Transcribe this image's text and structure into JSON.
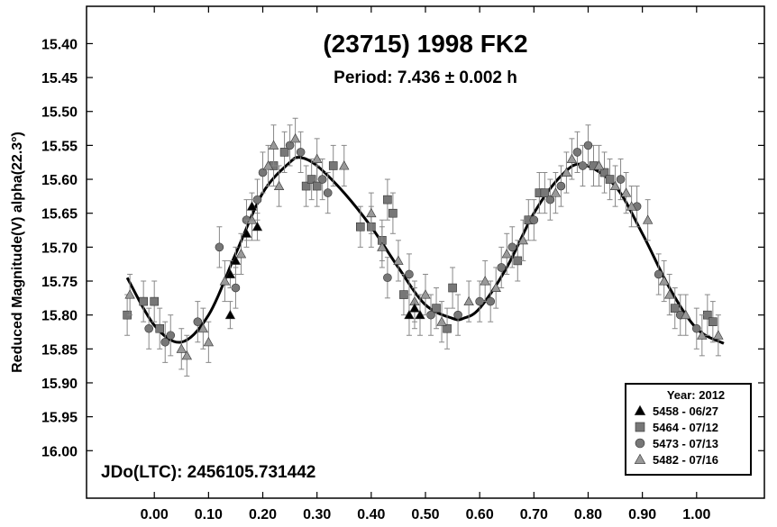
{
  "chart_data": {
    "type": "scatter",
    "title": "(23715) 1998 FK2",
    "subtitle": "Period: 7.436 ± 0.002 h",
    "xlabel": "",
    "ylabel": "Reduced Magnitude(V) alpha(22.3°)",
    "annotation": "JDo(LTC): 2456105.731442",
    "xlim": [
      -0.125,
      1.125
    ],
    "ylim": [
      16.07,
      15.345
    ],
    "y_inverted": true,
    "x_ticks": [
      "0.00",
      "0.10",
      "0.20",
      "0.30",
      "0.40",
      "0.50",
      "0.60",
      "0.70",
      "0.80",
      "0.90",
      "1.00"
    ],
    "y_ticks": [
      "15.40",
      "15.45",
      "15.50",
      "15.55",
      "15.60",
      "15.65",
      "15.70",
      "15.75",
      "15.80",
      "15.85",
      "15.90",
      "15.95",
      "16.00"
    ],
    "legend": {
      "title": "Year: 2012",
      "placement": "bottom-right",
      "entries": [
        "5458 - 06/27",
        "5464 - 07/12",
        "5473 - 07/13",
        "5482 - 07/16"
      ]
    },
    "fit_curve": {
      "name": "Fourier fit",
      "x": [
        -0.05,
        0.0,
        0.05,
        0.1,
        0.15,
        0.2,
        0.25,
        0.27,
        0.3,
        0.35,
        0.4,
        0.45,
        0.5,
        0.55,
        0.57,
        0.6,
        0.65,
        0.7,
        0.75,
        0.79,
        0.85,
        0.9,
        0.95,
        1.0,
        1.05
      ],
      "y": [
        15.745,
        15.815,
        15.84,
        15.8,
        15.71,
        15.62,
        15.575,
        15.568,
        15.58,
        15.62,
        15.67,
        15.73,
        15.785,
        15.805,
        15.805,
        15.79,
        15.73,
        15.65,
        15.595,
        15.578,
        15.61,
        15.68,
        15.76,
        15.82,
        15.842
      ],
      "color": "#000000"
    },
    "series": [
      {
        "name": "5458 - 06/27",
        "marker": "triangle",
        "color": "#000000",
        "points": [
          {
            "x": 0.14,
            "y": 15.74,
            "err": 0.02
          },
          {
            "x": 0.15,
            "y": 15.72,
            "err": 0.02
          },
          {
            "x": 0.14,
            "y": 15.8,
            "err": 0.02
          },
          {
            "x": 0.17,
            "y": 15.68,
            "err": 0.02
          },
          {
            "x": 0.18,
            "y": 15.64,
            "err": 0.02
          },
          {
            "x": 0.19,
            "y": 15.67,
            "err": 0.02
          },
          {
            "x": 0.47,
            "y": 15.8,
            "err": 0.03
          },
          {
            "x": 0.48,
            "y": 15.79,
            "err": 0.03
          },
          {
            "x": 0.49,
            "y": 15.8,
            "err": 0.03
          }
        ]
      },
      {
        "name": "5464 - 07/12",
        "marker": "square",
        "color": "#777777",
        "points": [
          {
            "x": -0.05,
            "y": 15.8,
            "err": 0.03
          },
          {
            "x": -0.02,
            "y": 15.78,
            "err": 0.03
          },
          {
            "x": 0.0,
            "y": 15.78,
            "err": 0.03
          },
          {
            "x": 0.01,
            "y": 15.82,
            "err": 0.03
          },
          {
            "x": 0.22,
            "y": 15.58,
            "err": 0.03
          },
          {
            "x": 0.24,
            "y": 15.56,
            "err": 0.03
          },
          {
            "x": 0.28,
            "y": 15.61,
            "err": 0.03
          },
          {
            "x": 0.29,
            "y": 15.6,
            "err": 0.03
          },
          {
            "x": 0.3,
            "y": 15.61,
            "err": 0.03
          },
          {
            "x": 0.33,
            "y": 15.58,
            "err": 0.03
          },
          {
            "x": 0.38,
            "y": 15.67,
            "err": 0.03
          },
          {
            "x": 0.4,
            "y": 15.67,
            "err": 0.03
          },
          {
            "x": 0.42,
            "y": 15.69,
            "err": 0.03
          },
          {
            "x": 0.43,
            "y": 15.63,
            "err": 0.03
          },
          {
            "x": 0.44,
            "y": 15.65,
            "err": 0.03
          },
          {
            "x": 0.46,
            "y": 15.77,
            "err": 0.03
          },
          {
            "x": 0.52,
            "y": 15.79,
            "err": 0.03
          },
          {
            "x": 0.54,
            "y": 15.82,
            "err": 0.03
          },
          {
            "x": 0.55,
            "y": 15.76,
            "err": 0.03
          },
          {
            "x": 0.67,
            "y": 15.72,
            "err": 0.03
          },
          {
            "x": 0.69,
            "y": 15.66,
            "err": 0.03
          },
          {
            "x": 0.71,
            "y": 15.62,
            "err": 0.03
          },
          {
            "x": 0.72,
            "y": 15.62,
            "err": 0.03
          },
          {
            "x": 0.81,
            "y": 15.58,
            "err": 0.03
          },
          {
            "x": 0.83,
            "y": 15.59,
            "err": 0.03
          },
          {
            "x": 0.84,
            "y": 15.6,
            "err": 0.03
          },
          {
            "x": 0.96,
            "y": 15.79,
            "err": 0.03
          },
          {
            "x": 1.02,
            "y": 15.8,
            "err": 0.03
          },
          {
            "x": 1.03,
            "y": 15.81,
            "err": 0.03
          }
        ]
      },
      {
        "name": "5473 - 07/13",
        "marker": "circle",
        "color": "#777777",
        "points": [
          {
            "x": -0.01,
            "y": 15.82,
            "err": 0.03
          },
          {
            "x": 0.02,
            "y": 15.84,
            "err": 0.03
          },
          {
            "x": 0.03,
            "y": 15.83,
            "err": 0.03
          },
          {
            "x": 0.08,
            "y": 15.81,
            "err": 0.03
          },
          {
            "x": 0.12,
            "y": 15.7,
            "err": 0.03
          },
          {
            "x": 0.15,
            "y": 15.76,
            "err": 0.03
          },
          {
            "x": 0.17,
            "y": 15.66,
            "err": 0.03
          },
          {
            "x": 0.19,
            "y": 15.63,
            "err": 0.03
          },
          {
            "x": 0.2,
            "y": 15.59,
            "err": 0.03
          },
          {
            "x": 0.25,
            "y": 15.55,
            "err": 0.03
          },
          {
            "x": 0.27,
            "y": 15.56,
            "err": 0.03
          },
          {
            "x": 0.31,
            "y": 15.6,
            "err": 0.03
          },
          {
            "x": 0.32,
            "y": 15.62,
            "err": 0.03
          },
          {
            "x": 0.43,
            "y": 15.745,
            "err": 0.03
          },
          {
            "x": 0.47,
            "y": 15.74,
            "err": 0.03
          },
          {
            "x": 0.51,
            "y": 15.8,
            "err": 0.03
          },
          {
            "x": 0.56,
            "y": 15.8,
            "err": 0.03
          },
          {
            "x": 0.6,
            "y": 15.78,
            "err": 0.03
          },
          {
            "x": 0.62,
            "y": 15.78,
            "err": 0.03
          },
          {
            "x": 0.64,
            "y": 15.73,
            "err": 0.03
          },
          {
            "x": 0.66,
            "y": 15.7,
            "err": 0.03
          },
          {
            "x": 0.7,
            "y": 15.66,
            "err": 0.03
          },
          {
            "x": 0.73,
            "y": 15.63,
            "err": 0.03
          },
          {
            "x": 0.75,
            "y": 15.61,
            "err": 0.03
          },
          {
            "x": 0.78,
            "y": 15.56,
            "err": 0.03
          },
          {
            "x": 0.79,
            "y": 15.58,
            "err": 0.03
          },
          {
            "x": 0.8,
            "y": 15.55,
            "err": 0.03
          },
          {
            "x": 0.86,
            "y": 15.6,
            "err": 0.03
          },
          {
            "x": 0.89,
            "y": 15.64,
            "err": 0.03
          },
          {
            "x": 0.93,
            "y": 15.74,
            "err": 0.03
          },
          {
            "x": 0.97,
            "y": 15.8,
            "err": 0.03
          },
          {
            "x": 1.0,
            "y": 15.82,
            "err": 0.03
          }
        ]
      },
      {
        "name": "5482 - 07/16",
        "marker": "triangle",
        "color": "#999999",
        "points": [
          {
            "x": -0.045,
            "y": 15.77,
            "err": 0.03
          },
          {
            "x": 0.05,
            "y": 15.85,
            "err": 0.03
          },
          {
            "x": 0.06,
            "y": 15.86,
            "err": 0.03
          },
          {
            "x": 0.09,
            "y": 15.82,
            "err": 0.03
          },
          {
            "x": 0.1,
            "y": 15.84,
            "err": 0.03
          },
          {
            "x": 0.13,
            "y": 15.75,
            "err": 0.03
          },
          {
            "x": 0.16,
            "y": 15.71,
            "err": 0.03
          },
          {
            "x": 0.18,
            "y": 15.66,
            "err": 0.03
          },
          {
            "x": 0.21,
            "y": 15.58,
            "err": 0.03
          },
          {
            "x": 0.22,
            "y": 15.55,
            "err": 0.03
          },
          {
            "x": 0.23,
            "y": 15.61,
            "err": 0.03
          },
          {
            "x": 0.26,
            "y": 15.54,
            "err": 0.03
          },
          {
            "x": 0.3,
            "y": 15.57,
            "err": 0.03
          },
          {
            "x": 0.35,
            "y": 15.58,
            "err": 0.03
          },
          {
            "x": 0.4,
            "y": 15.65,
            "err": 0.03
          },
          {
            "x": 0.42,
            "y": 15.7,
            "err": 0.03
          },
          {
            "x": 0.45,
            "y": 15.72,
            "err": 0.03
          },
          {
            "x": 0.48,
            "y": 15.78,
            "err": 0.03
          },
          {
            "x": 0.5,
            "y": 15.77,
            "err": 0.03
          },
          {
            "x": 0.53,
            "y": 15.81,
            "err": 0.03
          },
          {
            "x": 0.58,
            "y": 15.78,
            "err": 0.03
          },
          {
            "x": 0.61,
            "y": 15.75,
            "err": 0.03
          },
          {
            "x": 0.63,
            "y": 15.76,
            "err": 0.03
          },
          {
            "x": 0.65,
            "y": 15.71,
            "err": 0.03
          },
          {
            "x": 0.68,
            "y": 15.69,
            "err": 0.03
          },
          {
            "x": 0.74,
            "y": 15.62,
            "err": 0.03
          },
          {
            "x": 0.76,
            "y": 15.59,
            "err": 0.03
          },
          {
            "x": 0.77,
            "y": 15.57,
            "err": 0.03
          },
          {
            "x": 0.82,
            "y": 15.58,
            "err": 0.03
          },
          {
            "x": 0.85,
            "y": 15.61,
            "err": 0.03
          },
          {
            "x": 0.87,
            "y": 15.62,
            "err": 0.03
          },
          {
            "x": 0.88,
            "y": 15.64,
            "err": 0.03
          },
          {
            "x": 0.91,
            "y": 15.66,
            "err": 0.03
          },
          {
            "x": 0.94,
            "y": 15.75,
            "err": 0.03
          },
          {
            "x": 0.95,
            "y": 15.77,
            "err": 0.03
          },
          {
            "x": 0.98,
            "y": 15.8,
            "err": 0.03
          },
          {
            "x": 1.01,
            "y": 15.83,
            "err": 0.03
          },
          {
            "x": 1.04,
            "y": 15.83,
            "err": 0.03
          }
        ]
      }
    ],
    "grid": false
  }
}
